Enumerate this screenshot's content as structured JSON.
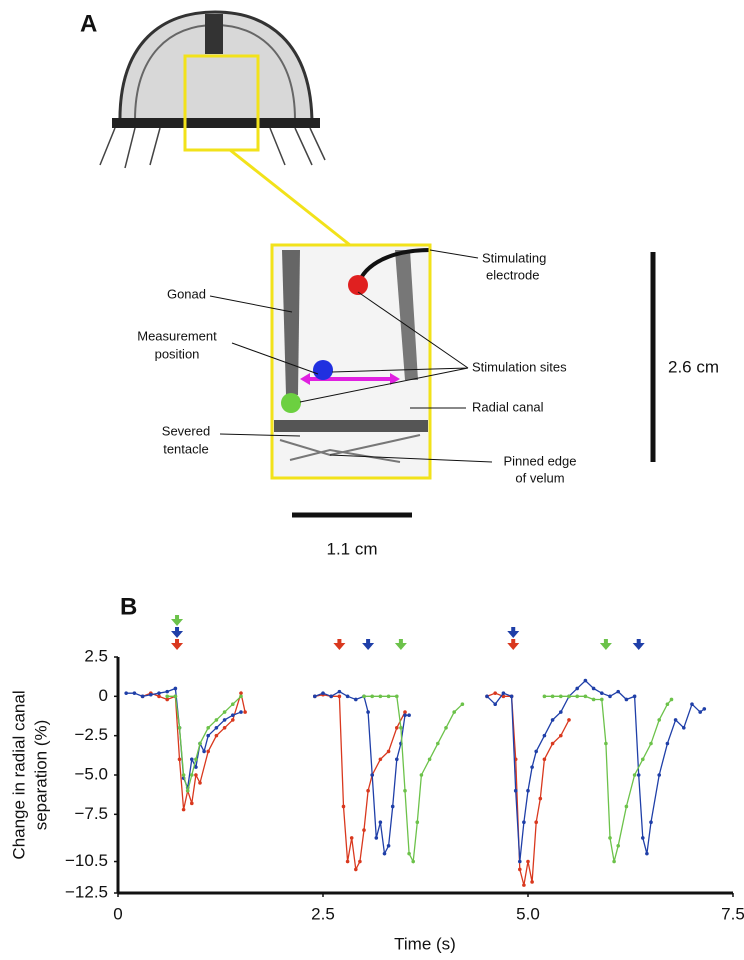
{
  "panel_a": {
    "label": "A",
    "annotations": [
      [
        "Stimulating",
        "electrode"
      ],
      [
        "Gonad"
      ],
      [
        "Measurement",
        "position"
      ],
      [
        "Stimulation sites"
      ],
      [
        "Radial canal"
      ],
      [
        "Severed",
        "tentacle"
      ],
      [
        "Pinned edge",
        "of velum"
      ]
    ],
    "scale_bars": [
      "2.6 cm",
      "1.1 cm"
    ]
  },
  "chart_data": {
    "type": "line",
    "panel_label": "B",
    "xlabel": "Time (s)",
    "ylabel": [
      "Change in radial canal",
      "separation (%)"
    ],
    "xlim": [
      0,
      7.5
    ],
    "xticks": [
      0,
      2.5,
      {
        "value": 5,
        "label": "5.0"
      },
      7.5
    ],
    "ylim": [
      -12.5,
      2.5
    ],
    "yticks": [
      2.5,
      0,
      {
        "value": -2.5,
        "label": "−2.5"
      },
      {
        "value": -5,
        "label": "−5.0"
      },
      {
        "value": -7.5,
        "label": "−7.5"
      },
      {
        "value": -10.5,
        "label": "−10.5"
      },
      {
        "value": -12.5,
        "label": "−12.5"
      }
    ],
    "series": [
      {
        "color": "#d9381e",
        "stimuli": [
          0.72,
          2.7,
          4.82
        ],
        "x": [
          0.3,
          0.4,
          0.5,
          0.6,
          0.7,
          0.75,
          0.8,
          0.85,
          0.9,
          0.95,
          1.0,
          1.1,
          1.2,
          1.3,
          1.4,
          1.5,
          1.55,
          null,
          2.4,
          2.5,
          2.6,
          2.7,
          2.75,
          2.8,
          2.85,
          2.9,
          2.95,
          3.0,
          3.05,
          3.1,
          3.2,
          3.3,
          3.4,
          3.5,
          null,
          4.5,
          4.6,
          4.7,
          4.8,
          4.85,
          4.9,
          4.95,
          5.0,
          5.05,
          5.1,
          5.15,
          5.2,
          5.3,
          5.4,
          5.5
        ],
        "values": [
          0,
          0.2,
          0,
          -0.2,
          0,
          -4,
          -7.2,
          -6,
          -6.8,
          -5,
          -5.5,
          -3.5,
          -2.5,
          -2,
          -1.5,
          0.2,
          -1,
          null,
          0,
          0.1,
          0,
          0,
          -7,
          -10.5,
          -9,
          -11,
          -10.5,
          -8.5,
          -6,
          -5,
          -4,
          -3.5,
          -2,
          -1,
          null,
          0,
          0.2,
          0,
          0,
          -4,
          -11,
          -12,
          -10.5,
          -11.8,
          -8,
          -6.5,
          -4,
          -3,
          -2.5,
          -1.5
        ]
      },
      {
        "color": "#1f3fa8",
        "stimuli": [
          0.72,
          3.05,
          4.82,
          6.35
        ],
        "x": [
          0.1,
          0.2,
          0.3,
          0.4,
          0.5,
          0.6,
          0.7,
          0.75,
          0.8,
          0.85,
          0.9,
          0.95,
          1.0,
          1.05,
          1.1,
          1.2,
          1.3,
          1.4,
          1.5,
          null,
          2.4,
          2.5,
          2.6,
          2.7,
          2.8,
          2.9,
          3.0,
          3.05,
          3.1,
          3.15,
          3.2,
          3.25,
          3.3,
          3.35,
          3.4,
          3.45,
          3.5,
          3.55,
          null,
          4.5,
          4.6,
          4.7,
          4.8,
          4.85,
          4.9,
          4.95,
          5.0,
          5.05,
          5.1,
          5.2,
          5.3,
          5.4,
          5.5,
          5.6,
          5.7,
          5.8,
          5.9,
          6.0,
          6.1,
          6.2,
          6.3,
          6.35,
          6.4,
          6.45,
          6.5,
          6.6,
          6.7,
          6.8,
          6.9,
          7.0,
          7.1,
          7.15
        ],
        "values": [
          0.2,
          0.2,
          0,
          0.1,
          0.2,
          0.3,
          0.5,
          -2,
          -5.2,
          -5.8,
          -4,
          -4.5,
          -3,
          -3.5,
          -2.5,
          -2,
          -1.5,
          -1.2,
          -1,
          null,
          0,
          0.2,
          0,
          0.3,
          0,
          -0.2,
          0,
          -1,
          -5,
          -9,
          -8,
          -10,
          -9.5,
          -7,
          -4,
          -3,
          -1.2,
          -1.2,
          null,
          0,
          -0.5,
          0.2,
          0,
          -6,
          -10.5,
          -8,
          -6,
          -4.5,
          -3.5,
          -2.5,
          -1.5,
          -1,
          0,
          0.5,
          1,
          0.5,
          0.2,
          0,
          0.3,
          -0.2,
          0,
          -5,
          -9,
          -10,
          -8,
          -5,
          -3,
          -1.5,
          -2,
          -0.5,
          -1,
          -0.8
        ]
      },
      {
        "color": "#6cc24a",
        "stimuli": [
          0.72,
          3.45,
          5.95
        ],
        "x": [
          0.6,
          0.7,
          0.75,
          0.8,
          0.85,
          0.9,
          0.95,
          1.0,
          1.1,
          1.2,
          1.3,
          1.4,
          1.5,
          null,
          3.0,
          3.1,
          3.2,
          3.3,
          3.4,
          3.45,
          3.5,
          3.55,
          3.6,
          3.65,
          3.7,
          3.8,
          3.9,
          4.0,
          4.1,
          4.2,
          null,
          5.2,
          5.3,
          5.4,
          5.5,
          5.6,
          5.7,
          5.8,
          5.9,
          5.95,
          6.0,
          6.05,
          6.1,
          6.2,
          6.3,
          6.4,
          6.5,
          6.6,
          6.7,
          6.75
        ],
        "values": [
          0,
          0,
          -2,
          -5,
          -6,
          -5,
          -4,
          -3,
          -2,
          -1.5,
          -1,
          -0.5,
          0,
          null,
          0,
          0,
          0,
          0,
          0,
          -2,
          -6,
          -10,
          -10.5,
          -8,
          -5,
          -4,
          -3,
          -2,
          -1,
          -0.5,
          null,
          0,
          0,
          0,
          0,
          0,
          0,
          -0.2,
          -0.2,
          -3,
          -9,
          -10.5,
          -9.5,
          -7,
          -5,
          -4,
          -3,
          -1.5,
          -0.5,
          -0.2
        ]
      }
    ]
  }
}
